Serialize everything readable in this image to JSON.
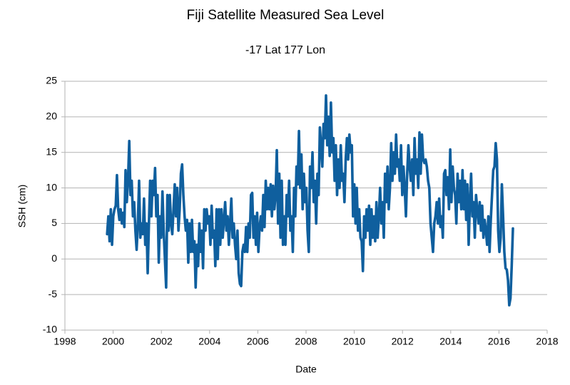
{
  "chart_data": {
    "type": "line",
    "title": "Fiji Satellite Measured Sea Level",
    "subtitle": "-17 Lat  177 Lon",
    "x_label": "Date",
    "y_label": "SSH (cm)",
    "color": "#0f5f9e",
    "grid": true,
    "xlim": [
      1998,
      2018
    ],
    "xticks": [
      1998,
      2000,
      2002,
      2004,
      2006,
      2008,
      2010,
      2012,
      2014,
      2016,
      2018
    ],
    "ylim": [
      -10,
      25
    ],
    "yticks": [
      -10,
      -5,
      0,
      5,
      10,
      15,
      20,
      25
    ],
    "x": [
      1999.75,
      1999.801,
      1999.852,
      1999.903,
      1999.954,
      2000.005,
      2000.056,
      2000.107,
      2000.158,
      2000.209,
      2000.26,
      2000.311,
      2000.362,
      2000.413,
      2000.464,
      2000.515,
      2000.566,
      2000.617,
      2000.668,
      2000.719,
      2000.77,
      2000.821,
      2000.872,
      2000.923,
      2000.974,
      2001.025,
      2001.076,
      2001.127,
      2001.178,
      2001.229,
      2001.28,
      2001.331,
      2001.382,
      2001.433,
      2001.484,
      2001.535,
      2001.586,
      2001.637,
      2001.688,
      2001.739,
      2001.79,
      2001.841,
      2001.892,
      2001.943,
      2001.994,
      2002.045,
      2002.096,
      2002.147,
      2002.198,
      2002.249,
      2002.3,
      2002.351,
      2002.402,
      2002.453,
      2002.504,
      2002.555,
      2002.606,
      2002.657,
      2002.708,
      2002.759,
      2002.81,
      2002.861,
      2002.912,
      2002.963,
      2003.014,
      2003.065,
      2003.116,
      2003.167,
      2003.218,
      2003.269,
      2003.32,
      2003.371,
      2003.422,
      2003.473,
      2003.524,
      2003.575,
      2003.626,
      2003.677,
      2003.728,
      2003.779,
      2003.83,
      2003.881,
      2003.932,
      2003.983,
      2004.034,
      2004.085,
      2004.136,
      2004.187,
      2004.238,
      2004.289,
      2004.34,
      2004.391,
      2004.442,
      2004.493,
      2004.544,
      2004.595,
      2004.646,
      2004.697,
      2004.748,
      2004.799,
      2004.85,
      2004.901,
      2004.952,
      2005.003,
      2005.054,
      2005.105,
      2005.156,
      2005.207,
      2005.258,
      2005.309,
      2005.36,
      2005.411,
      2005.462,
      2005.513,
      2005.564,
      2005.615,
      2005.666,
      2005.717,
      2005.768,
      2005.819,
      2005.87,
      2005.921,
      2005.972,
      2006.023,
      2006.074,
      2006.125,
      2006.176,
      2006.227,
      2006.278,
      2006.329,
      2006.38,
      2006.431,
      2006.482,
      2006.533,
      2006.584,
      2006.635,
      2006.686,
      2006.737,
      2006.788,
      2006.839,
      2006.89,
      2006.941,
      2006.992,
      2007.043,
      2007.094,
      2007.145,
      2007.196,
      2007.247,
      2007.298,
      2007.349,
      2007.4,
      2007.451,
      2007.502,
      2007.553,
      2007.604,
      2007.655,
      2007.706,
      2007.757,
      2007.808,
      2007.859,
      2007.91,
      2007.961,
      2008.012,
      2008.063,
      2008.114,
      2008.165,
      2008.216,
      2008.267,
      2008.318,
      2008.369,
      2008.42,
      2008.471,
      2008.522,
      2008.573,
      2008.624,
      2008.675,
      2008.726,
      2008.777,
      2008.828,
      2008.879,
      2008.93,
      2008.981,
      2009.032,
      2009.083,
      2009.134,
      2009.185,
      2009.236,
      2009.287,
      2009.338,
      2009.389,
      2009.44,
      2009.491,
      2009.542,
      2009.593,
      2009.644,
      2009.695,
      2009.746,
      2009.797,
      2009.848,
      2009.899,
      2009.95,
      2010.001,
      2010.052,
      2010.103,
      2010.154,
      2010.205,
      2010.256,
      2010.307,
      2010.358,
      2010.409,
      2010.46,
      2010.511,
      2010.562,
      2010.613,
      2010.664,
      2010.715,
      2010.766,
      2010.817,
      2010.868,
      2010.919,
      2010.97,
      2011.021,
      2011.072,
      2011.123,
      2011.174,
      2011.225,
      2011.276,
      2011.327,
      2011.378,
      2011.429,
      2011.48,
      2011.531,
      2011.582,
      2011.633,
      2011.684,
      2011.735,
      2011.786,
      2011.837,
      2011.888,
      2011.939,
      2011.99,
      2012.041,
      2012.092,
      2012.143,
      2012.194,
      2012.245,
      2012.296,
      2012.347,
      2012.398,
      2012.449,
      2012.5,
      2012.551,
      2012.602,
      2012.653,
      2012.704,
      2012.755,
      2012.806,
      2012.857,
      2012.908,
      2012.959,
      2013.01,
      2013.061,
      2013.112,
      2013.163,
      2013.214,
      2013.265,
      2013.316,
      2013.367,
      2013.418,
      2013.469,
      2013.52,
      2013.571,
      2013.622,
      2013.673,
      2013.724,
      2013.775,
      2013.826,
      2013.877,
      2013.928,
      2013.979,
      2014.03,
      2014.081,
      2014.132,
      2014.183,
      2014.234,
      2014.285,
      2014.336,
      2014.387,
      2014.438,
      2014.489,
      2014.54,
      2014.591,
      2014.642,
      2014.693,
      2014.744,
      2014.795,
      2014.846,
      2014.897,
      2014.948,
      2014.999,
      2015.05,
      2015.101,
      2015.152,
      2015.203,
      2015.254,
      2015.305,
      2015.356,
      2015.407,
      2015.458,
      2015.509,
      2015.56,
      2015.611,
      2015.662,
      2015.713,
      2015.764,
      2015.815,
      2015.866,
      2015.917,
      2015.968,
      2016.019,
      2016.07,
      2016.121,
      2016.172,
      2016.223,
      2016.274,
      2016.325,
      2016.376,
      2016.427,
      2016.478,
      2016.529,
      2016.58
    ],
    "values": [
      3.5,
      6,
      2.5,
      7,
      2,
      6,
      7,
      7.5,
      11.8,
      7,
      5.5,
      7,
      5,
      6.5,
      4.5,
      12.5,
      8,
      11,
      16.6,
      9,
      11,
      6,
      8,
      4,
      1.3,
      5,
      11,
      3,
      5,
      3.5,
      8.5,
      2,
      5,
      -2,
      5,
      11,
      6,
      11,
      9,
      12.8,
      6,
      9,
      -0.5,
      6,
      3,
      9.5,
      4,
      0,
      -4,
      9,
      4,
      9,
      5,
      3.5,
      7,
      10.5,
      6,
      10,
      4,
      7,
      12,
      13.3,
      9,
      6,
      4,
      5.5,
      -0.5,
      5,
      1,
      5.5,
      1,
      2.5,
      -4,
      2,
      -1,
      5,
      1,
      4,
      -1.3,
      7,
      4,
      7,
      5,
      6,
      2,
      7.5,
      3,
      4,
      -1,
      7,
      0,
      7,
      2,
      7,
      3,
      5.5,
      8,
      4,
      6,
      2,
      5,
      8.5,
      3,
      5,
      2,
      0,
      4,
      -2,
      -3.5,
      -3.8,
      1,
      2,
      1,
      4.5,
      1,
      5,
      3,
      9,
      9.3,
      3,
      6,
      2,
      6.5,
      1,
      4.5,
      6,
      4,
      9,
      4.5,
      11,
      7,
      10,
      7,
      10.5,
      6,
      10.3,
      7,
      9,
      15.3,
      5,
      12,
      3,
      11,
      2,
      6,
      2,
      9,
      6,
      11,
      4,
      6,
      1,
      10,
      6,
      13,
      10.5,
      18,
      10,
      14.7,
      7,
      12,
      8,
      10,
      4,
      1,
      13,
      10,
      15,
      8,
      11,
      5,
      12,
      9,
      18.5,
      16,
      13,
      19,
      17,
      23,
      16,
      20,
      14.5,
      22,
      15,
      17,
      11,
      16,
      9,
      14,
      10,
      16,
      11,
      12,
      8,
      14,
      17,
      14,
      17.5,
      15,
      16,
      6,
      10.5,
      5,
      10,
      4,
      7,
      3,
      2.5,
      -1.7,
      6,
      3,
      7,
      4,
      7.5,
      2,
      7,
      3,
      6,
      2.5,
      8,
      3,
      6,
      10,
      5,
      8,
      3,
      12,
      8,
      13,
      7,
      10,
      16.3,
      11,
      15,
      12,
      17.5,
      13,
      14,
      11,
      16,
      9,
      13,
      10,
      6,
      12,
      16,
      13,
      11,
      14,
      9,
      17,
      12,
      14,
      10,
      17.8,
      12,
      17.5,
      14,
      13.5,
      14,
      13,
      11,
      10,
      5,
      3,
      1,
      5,
      6,
      8,
      5,
      8.5,
      4.5,
      6,
      3,
      12,
      12.5,
      9,
      11.5,
      7,
      15.4,
      8,
      13,
      10,
      9,
      5,
      12,
      8,
      11,
      7,
      12.5,
      7,
      11,
      5.5,
      10.5,
      2,
      8,
      12,
      6,
      8,
      3,
      9,
      7,
      5,
      8,
      4,
      7.5,
      3,
      5.5,
      4,
      2,
      6,
      1,
      5.5,
      9,
      12.5,
      13,
      16.3,
      14,
      4,
      1,
      3,
      10.5,
      6,
      1,
      -1.3,
      -1.5,
      -3,
      -6.5,
      -5.5,
      -1,
      4.3
    ]
  }
}
